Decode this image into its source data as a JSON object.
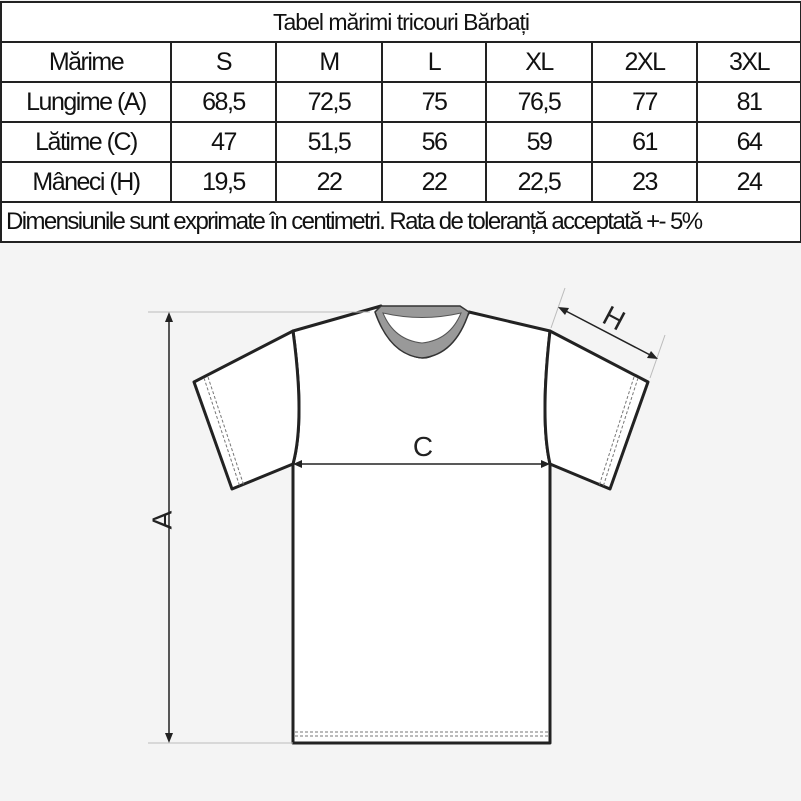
{
  "table": {
    "title": "Tabel mărimi tricouri Bărbați",
    "header": [
      "Mărime",
      "S",
      "M",
      "L",
      "XL",
      "2XL",
      "3XL"
    ],
    "rows": [
      {
        "label": "Lungime (A)",
        "values": [
          "68,5",
          "72,5",
          "75",
          "76,5",
          "77",
          "81"
        ]
      },
      {
        "label": "Lătime (C)",
        "values": [
          "47",
          "51,5",
          "56",
          "59",
          "61",
          "64"
        ]
      },
      {
        "label": "Mâneci (H)",
        "values": [
          "19,5",
          "22",
          "22",
          "22,5",
          "23",
          "24"
        ]
      }
    ],
    "note": "Dimensiunile sunt exprimate în centimetri. Rata de toleranță acceptată +- 5%"
  },
  "diagram": {
    "labels": {
      "length": "A",
      "width": "C",
      "sleeve": "H"
    }
  }
}
